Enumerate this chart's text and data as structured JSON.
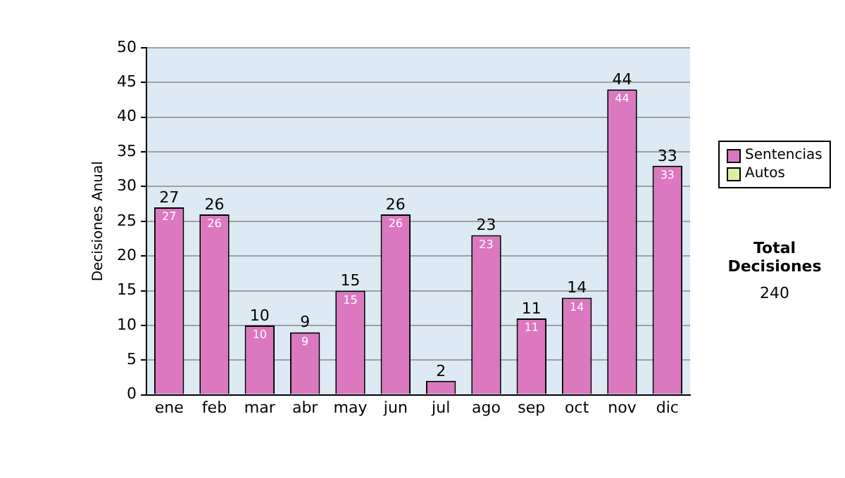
{
  "chart_data": {
    "type": "bar",
    "ylabel": "Decisiones Anual",
    "categories": [
      "ene",
      "feb",
      "mar",
      "abr",
      "may",
      "jun",
      "jul",
      "ago",
      "sep",
      "oct",
      "nov",
      "dic"
    ],
    "series": [
      {
        "name": "Sentencias",
        "color": "#dc78c0",
        "values": [
          27,
          26,
          10,
          9,
          15,
          26,
          2,
          23,
          11,
          14,
          44,
          33
        ],
        "value_labels": [
          "27",
          "26",
          "10",
          "9",
          "15",
          "26",
          null,
          "23",
          "11",
          "14",
          "44",
          "33"
        ]
      },
      {
        "name": "Autos",
        "color": "#d8f0a0",
        "values": [
          0,
          0,
          0,
          0,
          0,
          0,
          0,
          0,
          0,
          0,
          0,
          0
        ]
      }
    ],
    "stacked": true,
    "totals": [
      "27",
      "26",
      "10",
      "9",
      "15",
      "26",
      "2",
      "23",
      "11",
      "14",
      "44",
      "33"
    ],
    "ylim": [
      0,
      50
    ],
    "yticks": [
      0,
      5,
      10,
      15,
      20,
      25,
      30,
      35,
      40,
      45,
      50
    ],
    "grid": "y",
    "legend": "right",
    "annotations": [
      "Total Decisiones",
      "240"
    ]
  }
}
